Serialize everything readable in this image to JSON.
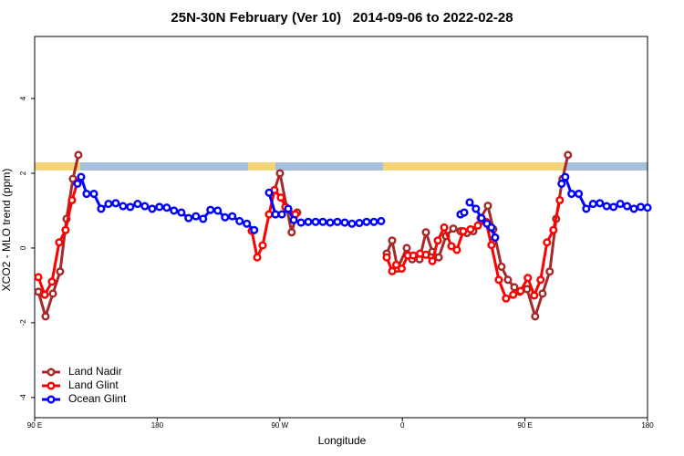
{
  "chart_data": {
    "type": "line",
    "title": "25N-30N February (Ver 10)   2014-09-06 to 2022-02-28",
    "x_label": "Longitude",
    "y_label": "XCO2 - MLO trend (ppm)",
    "xlim": [
      90,
      540
    ],
    "ylim": [
      -4.54,
      5.66
    ],
    "xticks": [
      {
        "value": 90,
        "label": "90 E"
      },
      180,
      {
        "value": 270,
        "label": "90 W"
      },
      {
        "value": 360,
        "label": "0"
      },
      {
        "value": 450,
        "label": "90 E"
      },
      {
        "value": 540,
        "label": "180"
      }
    ],
    "yticks": [
      -4,
      -2,
      0,
      2,
      4
    ],
    "legend": "bottom-left",
    "series": [
      {
        "name": "Land Nadir",
        "color": "#a52a2a",
        "x": [
          92.7,
          98.0,
          103.4,
          108.7,
          113.4,
          118.1,
          122.1,
          null,
          266.1,
          270.1,
          278.7,
          282.8,
          null,
          348.5,
          352.5,
          356.5,
          363.2,
          367.2,
          372.6,
          377.3,
          382.0,
          386.7,
          392.0,
          397.4,
          402.7,
          407.4,
          412.1,
          417.4,
          422.8,
          426.8,
          432.8,
          437.5,
          442.2,
          446.2,
          451.5,
          457.5,
          462.9,
          468.2,
          472.9,
          477.6,
          481.6
        ],
        "values": [
          -1.17,
          -1.83,
          -1.22,
          -0.63,
          0.78,
          1.85,
          2.49,
          null,
          1.55,
          2.0,
          0.42,
          0.95,
          null,
          -0.15,
          0.2,
          -0.55,
          0.0,
          -0.3,
          -0.3,
          0.42,
          -0.1,
          -0.25,
          0.32,
          0.52,
          0.45,
          0.4,
          0.45,
          0.8,
          1.13,
          0.5,
          -0.5,
          -0.85,
          -1.05,
          -1.17,
          -1.1,
          -1.83,
          -1.22,
          -0.63,
          0.78,
          1.85,
          2.49
        ]
      },
      {
        "name": "Land Glint",
        "color": "#ff0000",
        "x": [
          92.7,
          97.4,
          102.7,
          108.0,
          112.7,
          117.4,
          121.4,
          null,
          249.4,
          253.4,
          257.4,
          262.1,
          266.1,
          270.8,
          274.1,
          281.4,
          null,
          348.5,
          352.5,
          355.5,
          359.5,
          364.0,
          368.0,
          373.0,
          377.3,
          382.0,
          386.0,
          390.7,
          396.0,
          400.0,
          404.7,
          410.0,
          415.4,
          421.4,
          425.4,
          430.8,
          436.1,
          441.4,
          446.8,
          452.1,
          456.8,
          461.5,
          466.2,
          470.9,
          475.6
        ],
        "values": [
          -0.78,
          -1.25,
          -0.9,
          0.15,
          0.48,
          1.28,
          1.75,
          null,
          0.46,
          -0.25,
          0.07,
          0.9,
          1.55,
          1.35,
          1.1,
          0.9,
          null,
          -0.25,
          -0.62,
          -0.45,
          -0.55,
          -0.2,
          -0.2,
          -0.15,
          -0.18,
          -0.35,
          0.2,
          0.55,
          0.05,
          -0.05,
          0.45,
          0.5,
          0.6,
          0.7,
          0.08,
          -0.85,
          -1.35,
          -1.25,
          -1.15,
          -0.8,
          -1.27,
          -0.85,
          0.15,
          0.48,
          1.28
        ]
      },
      {
        "name": "Ocean Glint",
        "color": "#0000ff",
        "x": [
          121.4,
          124.1,
          128.1,
          133.5,
          138.8,
          144.2,
          149.5,
          154.9,
          160.2,
          165.6,
          170.9,
          176.3,
          181.6,
          187.0,
          192.3,
          197.7,
          203.0,
          208.4,
          213.7,
          219.1,
          224.4,
          229.8,
          235.1,
          240.5,
          245.8,
          251.2,
          null,
          262.1,
          266.8,
          271.5,
          276.2,
          280.2,
          285.6,
          290.9,
          296.3,
          301.6,
          307.0,
          312.3,
          317.7,
          323.0,
          328.4,
          333.7,
          339.1,
          344.4,
          null,
          402.7,
          405.4,
          null,
          409.4,
          414.0,
          418.1,
          422.1,
          425.4,
          428.1,
          null,
          476.9,
          479.6,
          484.2,
          489.5,
          495.0,
          500.0,
          505.0,
          510.0,
          515.0,
          520.0,
          525.0,
          530.0,
          535.0,
          540.0
        ],
        "values": [
          1.72,
          1.9,
          1.45,
          1.45,
          1.05,
          1.18,
          1.2,
          1.12,
          1.1,
          1.18,
          1.12,
          1.05,
          1.1,
          1.08,
          1.0,
          0.95,
          0.8,
          0.85,
          0.78,
          1.02,
          1.0,
          0.82,
          0.85,
          0.72,
          0.65,
          0.48,
          null,
          1.48,
          0.9,
          0.9,
          1.05,
          0.75,
          0.68,
          0.7,
          0.7,
          0.7,
          0.68,
          0.7,
          0.68,
          0.65,
          0.67,
          0.7,
          0.7,
          0.72,
          null,
          0.9,
          0.95,
          null,
          1.22,
          1.05,
          0.8,
          0.65,
          0.55,
          0.28,
          null,
          1.72,
          1.9,
          1.45,
          1.45,
          1.05,
          1.18,
          1.2,
          1.12,
          1.1,
          1.18,
          1.12,
          1.05,
          1.1,
          1.08
        ]
      }
    ]
  }
}
